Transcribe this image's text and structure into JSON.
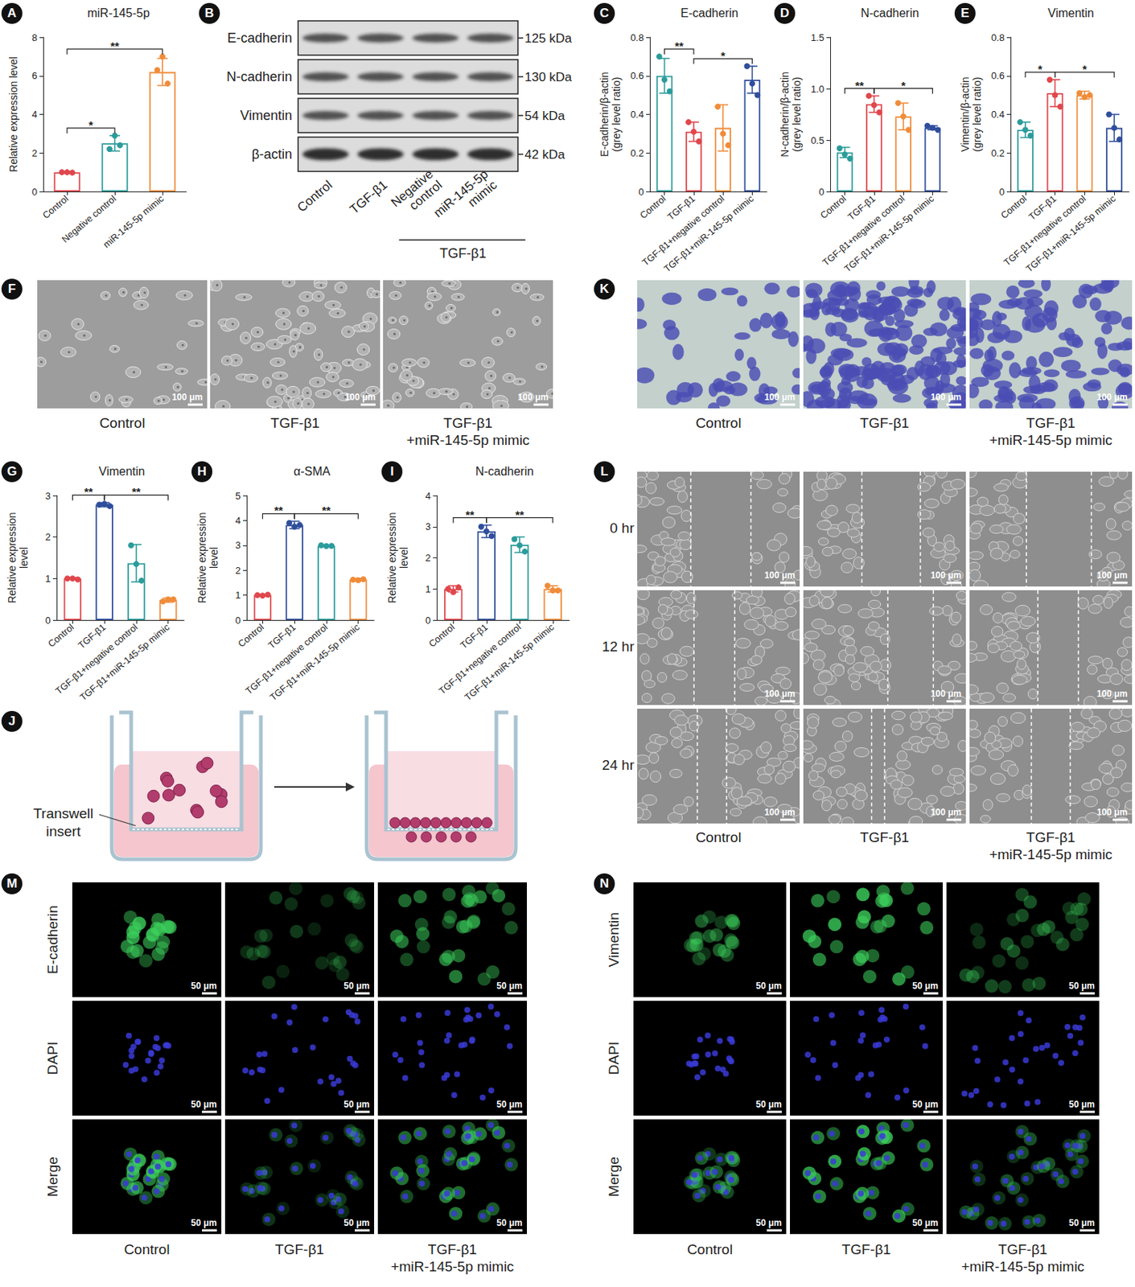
{
  "chart_data": [
    {
      "panel": "A",
      "type": "bar",
      "title": "miR-145-5p",
      "ylabel": "Relative expression level",
      "categories": [
        "Control",
        "Negative control",
        "miR-145-5p mimic"
      ],
      "values": [
        1.0,
        2.5,
        6.2
      ],
      "errors": [
        0.05,
        0.4,
        0.7
      ],
      "points": [
        [
          1.0,
          1.0,
          0.98
        ],
        [
          2.2,
          2.9,
          2.4
        ],
        [
          6.3,
          7.0,
          5.6
        ]
      ],
      "colors": [
        "#e0474c",
        "#2b9c9b",
        "#f08c3a"
      ],
      "ylim": [
        0,
        8
      ],
      "yticks": [
        0,
        2,
        4,
        6,
        8
      ],
      "grid": false,
      "significance": [
        {
          "from": 0,
          "to": 1,
          "label": "*"
        },
        {
          "from": 0,
          "to": 2,
          "label": "**"
        }
      ]
    },
    {
      "panel": "C",
      "type": "bar",
      "title": "E-cadherin",
      "ylabel": "E-cadherin/β-actin\n(grey level ratio)",
      "categories": [
        "Control",
        "TGF-β1",
        "TGF-β1+negative control",
        "TGF-β1+miR-145-5p mimic"
      ],
      "values": [
        0.6,
        0.31,
        0.33,
        0.58
      ],
      "errors": [
        0.09,
        0.05,
        0.12,
        0.07
      ],
      "points": [
        [
          0.7,
          0.58,
          0.52
        ],
        [
          0.36,
          0.31,
          0.26
        ],
        [
          0.44,
          0.3,
          0.24
        ],
        [
          0.65,
          0.56,
          0.5
        ]
      ],
      "colors": [
        "#2b9c9b",
        "#e0474c",
        "#f08c3a",
        "#2f4e9c"
      ],
      "ylim": [
        0,
        0.8
      ],
      "yticks": [
        0,
        0.2,
        0.4,
        0.6,
        0.8
      ],
      "grid": false,
      "significance": [
        {
          "from": 0,
          "to": 1,
          "label": "**"
        },
        {
          "from": 1,
          "to": 3,
          "label": "*"
        }
      ]
    },
    {
      "panel": "D",
      "type": "bar",
      "title": "N-cadherin",
      "ylabel": "N-cadherin/β-actin\n(grey level ratio)",
      "categories": [
        "Control",
        "TGF-β1",
        "TGF-β1+negative control",
        "TGF-β1+miR-145-5p mimic"
      ],
      "values": [
        0.38,
        0.85,
        0.73,
        0.62
      ],
      "errors": [
        0.05,
        0.08,
        0.13,
        0.02
      ],
      "points": [
        [
          0.42,
          0.36,
          0.32
        ],
        [
          0.93,
          0.84,
          0.77
        ],
        [
          0.86,
          0.73,
          0.6
        ],
        [
          0.64,
          0.62,
          0.6
        ]
      ],
      "colors": [
        "#2b9c9b",
        "#e0474c",
        "#f08c3a",
        "#2f4e9c"
      ],
      "ylim": [
        0,
        1.5
      ],
      "yticks": [
        0,
        0.5,
        {
          "value": 1,
          "label": "1.0"
        },
        1.5
      ],
      "grid": false,
      "significance": [
        {
          "from": 0,
          "to": 1,
          "label": "**"
        },
        {
          "from": 1,
          "to": 3,
          "label": "*"
        }
      ]
    },
    {
      "panel": "E",
      "type": "bar",
      "title": "Vimentin",
      "ylabel": "Vimentin/β-actin\n(grey level ratio)",
      "categories": [
        "Control",
        "TGF-β1",
        "TGF-β1+negative control",
        "TGF-β1+miR-145-5p mimic"
      ],
      "values": [
        0.32,
        0.51,
        0.5,
        0.33
      ],
      "errors": [
        0.04,
        0.07,
        0.02,
        0.07
      ],
      "points": [
        [
          0.36,
          0.32,
          0.29
        ],
        [
          0.58,
          0.5,
          0.44
        ],
        [
          0.51,
          0.49,
          0.5
        ],
        [
          0.4,
          0.33,
          0.27
        ]
      ],
      "colors": [
        "#2b9c9b",
        "#e0474c",
        "#f08c3a",
        "#2f4e9c"
      ],
      "ylim": [
        0,
        0.8
      ],
      "yticks": [
        0,
        0.2,
        0.4,
        0.6,
        0.8
      ],
      "grid": false,
      "significance": [
        {
          "from": 0,
          "to": 1,
          "label": "*"
        },
        {
          "from": 1,
          "to": 3,
          "label": "*"
        }
      ]
    },
    {
      "panel": "G",
      "type": "bar",
      "title": "Vimentin",
      "ylabel": "Relative expression\nlevel",
      "categories": [
        "Control",
        "TGF-β1",
        "TGF-β1+negative control",
        "TGF-β1+miR-145-5p mimic"
      ],
      "values": [
        1.0,
        2.78,
        1.37,
        0.48
      ],
      "errors": [
        0.02,
        0.05,
        0.45,
        0.05
      ],
      "points": [
        [
          1.0,
          1.0,
          0.98
        ],
        [
          2.78,
          2.8,
          2.75
        ],
        [
          1.8,
          1.35,
          0.95
        ],
        [
          0.45,
          0.5,
          0.5
        ]
      ],
      "colors": [
        "#e0474c",
        "#2f4e9c",
        "#2b9c9b",
        "#f08c3a"
      ],
      "ylim": [
        0,
        3
      ],
      "yticks": [
        0,
        1,
        2,
        3
      ],
      "grid": false,
      "significance": [
        {
          "from": 0,
          "to": 1,
          "label": "**"
        },
        {
          "from": 1,
          "to": 3,
          "label": "**"
        }
      ]
    },
    {
      "panel": "H",
      "type": "bar",
      "title": "α-SMA",
      "ylabel": "Relative expression\nlevel",
      "categories": [
        "Control",
        "TGF-β1",
        "TGF-β1+negative control",
        "TGF-β1+miR-145-5p mimic"
      ],
      "values": [
        1.0,
        3.82,
        2.98,
        1.62
      ],
      "errors": [
        0.03,
        0.15,
        0.03,
        0.05
      ],
      "points": [
        [
          1.0,
          0.98,
          1.02
        ],
        [
          3.9,
          3.75,
          3.82
        ],
        [
          3.0,
          2.97,
          2.98
        ],
        [
          1.62,
          1.6,
          1.64
        ]
      ],
      "colors": [
        "#e0474c",
        "#2f4e9c",
        "#2b9c9b",
        "#f08c3a"
      ],
      "ylim": [
        0,
        5
      ],
      "yticks": [
        0,
        1,
        2,
        3,
        4,
        5
      ],
      "grid": false,
      "significance": [
        {
          "from": 0,
          "to": 1,
          "label": "**"
        },
        {
          "from": 1,
          "to": 3,
          "label": "**"
        }
      ]
    },
    {
      "panel": "I",
      "type": "bar",
      "title": "N-cadherin",
      "ylabel": "Relative expression\nlevel",
      "categories": [
        "Control",
        "TGF-β1",
        "TGF-β1+negative control",
        "TGF-β1+miR-145-5p mimic"
      ],
      "values": [
        1.0,
        2.85,
        2.42,
        1.0
      ],
      "errors": [
        0.1,
        0.2,
        0.25,
        0.1
      ],
      "points": [
        [
          1.0,
          0.9,
          1.05
        ],
        [
          3.0,
          2.85,
          2.7
        ],
        [
          2.6,
          2.4,
          2.2
        ],
        [
          1.1,
          0.95,
          0.95
        ]
      ],
      "colors": [
        "#e0474c",
        "#2f4e9c",
        "#2b9c9b",
        "#f08c3a"
      ],
      "ylim": [
        0,
        4
      ],
      "yticks": [
        0,
        1,
        2,
        3,
        4
      ],
      "grid": false,
      "significance": [
        {
          "from": 0,
          "to": 1,
          "label": "**"
        },
        {
          "from": 1,
          "to": 3,
          "label": "**"
        }
      ]
    }
  ],
  "panels": {
    "B": {
      "label": "B",
      "rows": [
        {
          "protein": "E-cadherin",
          "size": "125 kDa"
        },
        {
          "protein": "N-cadherin",
          "size": "130 kDa"
        },
        {
          "protein": "Vimentin",
          "size": "54 kDa"
        },
        {
          "protein": "β-actin",
          "size": "42 kDa"
        }
      ],
      "lanes": [
        "Control",
        "TGF-β1",
        "Negative\ncontrol",
        "miR-145-5p\nmimic"
      ],
      "group": "TGF-β1"
    },
    "F": {
      "label": "F",
      "scale_bar": "100 μm",
      "captions": [
        "Control",
        "TGF-β1",
        "TGF-β1\n+miR-145-5p mimic"
      ]
    },
    "K": {
      "label": "K",
      "scale_bar": "100 μm",
      "captions": [
        "Control",
        "TGF-β1",
        "TGF-β1\n+miR-145-5p mimic"
      ]
    },
    "J": {
      "label": "J",
      "text": "Transwell\ninsert"
    },
    "L": {
      "label": "L",
      "rows": [
        "0 hr",
        "12 hr",
        "24 hr"
      ],
      "scale_bar": "100 μm",
      "captions": [
        "Control",
        "TGF-β1",
        "TGF-β1\n+miR-145-5p mimic"
      ]
    },
    "M": {
      "label": "M",
      "rows": [
        "E-cadherin",
        "DAPI",
        "Merge"
      ],
      "scale_bar": "50 μm",
      "captions": [
        "Control",
        "TGF-β1",
        "TGF-β1\n+miR-145-5p mimic"
      ]
    },
    "N": {
      "label": "N",
      "rows": [
        "Vimentin",
        "DAPI",
        "Merge"
      ],
      "scale_bar": "50 μm",
      "captions": [
        "Control",
        "TGF-β1",
        "TGF-β1\n+miR-145-5p mimic"
      ]
    }
  }
}
